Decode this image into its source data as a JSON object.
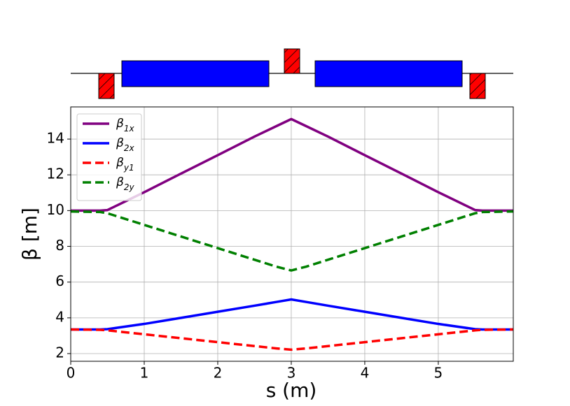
{
  "chart_data": {
    "type": "line",
    "x_label": "s (m)",
    "y_label": "β [m]",
    "x": [
      0,
      0.4,
      0.5,
      1,
      1.5,
      2,
      2.5,
      2.8,
      3,
      3.2,
      3.5,
      4,
      4.5,
      5,
      5.5,
      5.6,
      6.02
    ],
    "series": [
      {
        "name": "β1x",
        "color": "#800080",
        "dash": false,
        "values": [
          10,
          10,
          10.03,
          11.03,
          12.07,
          13.1,
          14.14,
          14.73,
          15.12,
          14.73,
          14.14,
          13.1,
          12.07,
          11.03,
          10.03,
          10,
          10
        ]
      },
      {
        "name": "β2x",
        "color": "#0000ff",
        "dash": false,
        "values": [
          3.35,
          3.35,
          3.37,
          3.66,
          4.0,
          4.34,
          4.68,
          4.89,
          5.03,
          4.89,
          4.68,
          4.34,
          4.0,
          3.66,
          3.37,
          3.35,
          3.35
        ]
      },
      {
        "name": "βy1",
        "color": "#ff0000",
        "dash": true,
        "values": [
          3.35,
          3.33,
          3.3,
          3.08,
          2.86,
          2.64,
          2.42,
          2.29,
          2.22,
          2.29,
          2.42,
          2.64,
          2.86,
          3.08,
          3.3,
          3.33,
          3.35
        ]
      },
      {
        "name": "β2y",
        "color": "#008000",
        "dash": true,
        "values": [
          9.95,
          9.92,
          9.85,
          9.2,
          8.55,
          7.9,
          7.25,
          6.86,
          6.65,
          6.86,
          7.25,
          7.9,
          8.55,
          9.2,
          9.85,
          9.92,
          9.95
        ]
      }
    ],
    "xlim": [
      0,
      6.02
    ],
    "ylim": [
      1.57,
      15.8
    ],
    "xticks": [
      0,
      1,
      2,
      3,
      4,
      5
    ],
    "yticks": [
      2,
      4,
      6,
      8,
      10,
      12,
      14
    ],
    "grid": true,
    "legend": "upper left"
  }
}
